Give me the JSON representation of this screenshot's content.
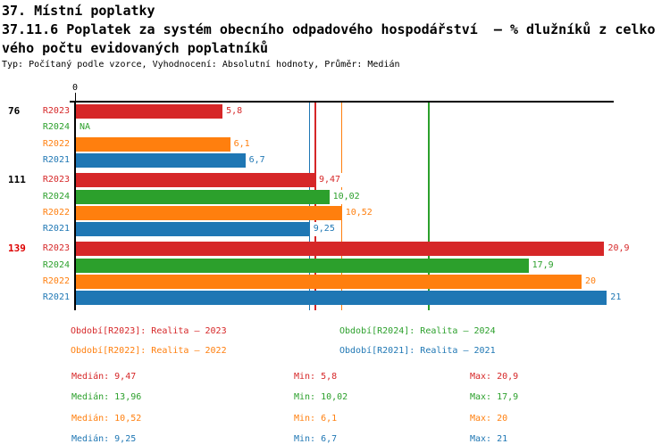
{
  "header": {
    "line1": "37. Místní poplatky",
    "line2": "37.11.6 Poplatek za systém obecního odpadového hospodářství  – % dlužníků z celko",
    "line3": "vého počtu evidovaných poplatníků",
    "meta": "Typ: Počítaný podle vzorce, Vyhodnocení: Absolutní hodnoty, Průměr: Medián"
  },
  "colors": {
    "R2023": "#d62728",
    "R2024": "#2ca02c",
    "R2022": "#ff7f0e",
    "R2021": "#1f77b4",
    "axis": "#000000",
    "group_label_default": "#000000",
    "group_label_highlight": "#dd0000"
  },
  "chart_data": {
    "type": "bar",
    "orientation": "horizontal",
    "x_axis": {
      "origin_label": "0",
      "min": 0,
      "max": 21.3,
      "gridlines": false
    },
    "series_order": [
      "R2023",
      "R2024",
      "R2022",
      "R2021"
    ],
    "groups": [
      {
        "label": "76",
        "highlight": false,
        "values": {
          "R2023": 5.8,
          "R2024": null,
          "R2022": 6.1,
          "R2021": 6.7
        },
        "display": {
          "R2023": "5,8",
          "R2024": "NA",
          "R2022": "6,1",
          "R2021": "6,7"
        }
      },
      {
        "label": "111",
        "highlight": false,
        "values": {
          "R2023": 9.47,
          "R2024": 10.02,
          "R2022": 10.52,
          "R2021": 9.25
        },
        "display": {
          "R2023": "9,47",
          "R2024": "10,02",
          "R2022": "10,52",
          "R2021": "9,25"
        }
      },
      {
        "label": "139",
        "highlight": true,
        "values": {
          "R2023": 20.9,
          "R2024": 17.9,
          "R2022": 20,
          "R2021": 21
        },
        "display": {
          "R2023": "20,9",
          "R2024": "17,9",
          "R2022": "20",
          "R2021": "21"
        }
      }
    ],
    "median_lines": {
      "R2023": 9.47,
      "R2024": 13.96,
      "R2022": 10.52,
      "R2021": 9.25
    }
  },
  "legend": {
    "items": [
      {
        "series": "R2023",
        "text": "Období[R2023]: Realita – 2023"
      },
      {
        "series": "R2024",
        "text": "Období[R2024]: Realita – 2024"
      },
      {
        "series": "R2022",
        "text": "Období[R2022]: Realita – 2022"
      },
      {
        "series": "R2021",
        "text": "Období[R2021]: Realita – 2021"
      }
    ]
  },
  "stats": {
    "rows": [
      {
        "series": "R2023",
        "median": "Medián: 9,47",
        "min": "Min: 5,8",
        "max": "Max: 20,9"
      },
      {
        "series": "R2024",
        "median": "Medián: 13,96",
        "min": "Min: 10,02",
        "max": "Max: 17,9"
      },
      {
        "series": "R2022",
        "median": "Medián: 10,52",
        "min": "Min: 6,1",
        "max": "Max: 20"
      },
      {
        "series": "R2021",
        "median": "Medián: 9,25",
        "min": "Min: 6,7",
        "max": "Max: 21"
      }
    ]
  }
}
